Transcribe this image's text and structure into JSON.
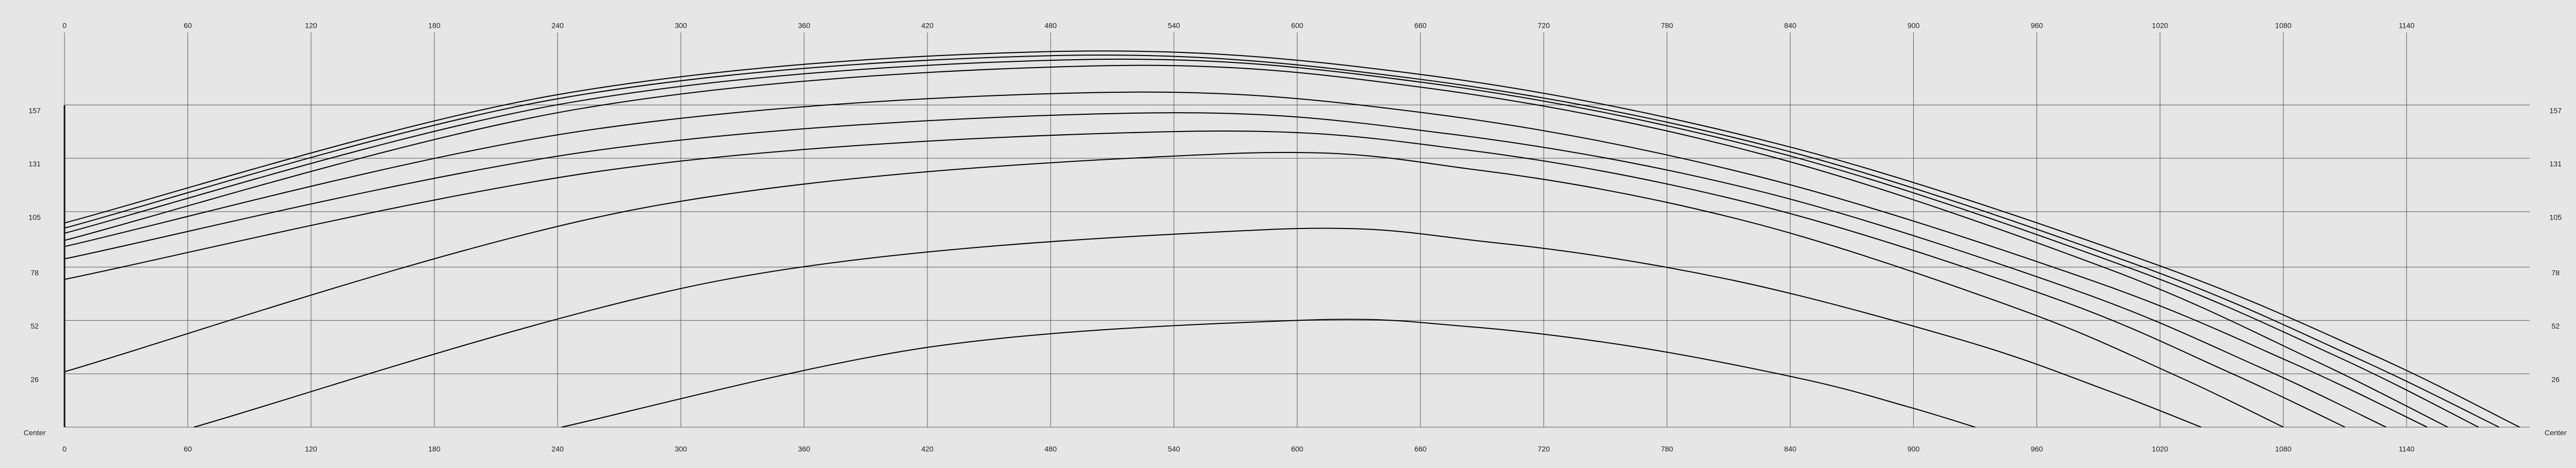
{
  "chart_data": {
    "type": "line",
    "xlim": [
      0,
      1200
    ],
    "ylim": [
      0,
      190
    ],
    "xticks": [
      0,
      60,
      120,
      180,
      240,
      300,
      360,
      420,
      480,
      540,
      600,
      660,
      720,
      780,
      840,
      900,
      960,
      1020,
      1080,
      1140
    ],
    "yticks": [
      {
        "value": 0,
        "label": "Center"
      },
      26,
      52,
      78,
      105,
      131,
      157
    ],
    "grid": true,
    "series": [
      {
        "color": "#000000",
        "x": [
          0,
          240,
          480,
          659,
          838,
          1016,
          1124,
          1195
        ],
        "values": [
          99.5,
          162,
          183,
          172,
          137,
          80,
          35,
          0
        ]
      },
      {
        "color": "#000000",
        "x": [
          0,
          240,
          480,
          656,
          833,
          1009,
          1115,
          1185
        ],
        "values": [
          97,
          160,
          181,
          170,
          136,
          79,
          34,
          0
        ]
      },
      {
        "color": "#000000",
        "x": [
          0,
          245,
          490,
          661,
          833,
          1004,
          1107,
          1175
        ],
        "values": [
          94.5,
          158,
          179,
          168,
          134,
          78,
          34,
          0
        ]
      },
      {
        "color": "#000000",
        "x": [
          0,
          250,
          500,
          665,
          830,
          995,
          1094,
          1160
        ],
        "values": [
          91,
          155,
          176,
          165,
          132,
          77,
          33,
          0
        ]
      },
      {
        "color": "#000000",
        "x": [
          0,
          250,
          500,
          663,
          825,
          988,
          1085,
          1150
        ],
        "values": [
          88,
          144,
          163,
          153,
          122,
          71,
          31,
          0
        ]
      },
      {
        "color": "#000000",
        "x": [
          0,
          260,
          520,
          673,
          825,
          978,
          1069,
          1130
        ],
        "values": [
          82,
          135,
          153,
          143,
          115,
          67,
          29,
          0
        ]
      },
      {
        "color": "#000000",
        "x": [
          0,
          270,
          540,
          683,
          825,
          968,
          1053,
          1110
        ],
        "values": [
          72,
          126,
          144,
          135,
          108,
          63,
          27,
          0
        ]
      },
      {
        "color": "#000000",
        "x": [
          0,
          280,
          560,
          690,
          820,
          950,
          1028,
          1080
        ],
        "values": [
          27,
          106.5,
          133,
          125,
          100,
          58,
          25,
          0
        ]
      },
      {
        "color": "#000000",
        "x": [
          63,
          322,
          580,
          695,
          810,
          925,
          994,
          1040
        ],
        "values": [
          0,
          72,
          96,
          90,
          72,
          42,
          18,
          0
        ]
      },
      {
        "color": "#000000",
        "x": [
          242,
          421,
          600,
          683,
          765,
          848,
          897,
          930
        ],
        "values": [
          0,
          39,
          52,
          49,
          39,
          23,
          10,
          0
        ]
      }
    ]
  }
}
